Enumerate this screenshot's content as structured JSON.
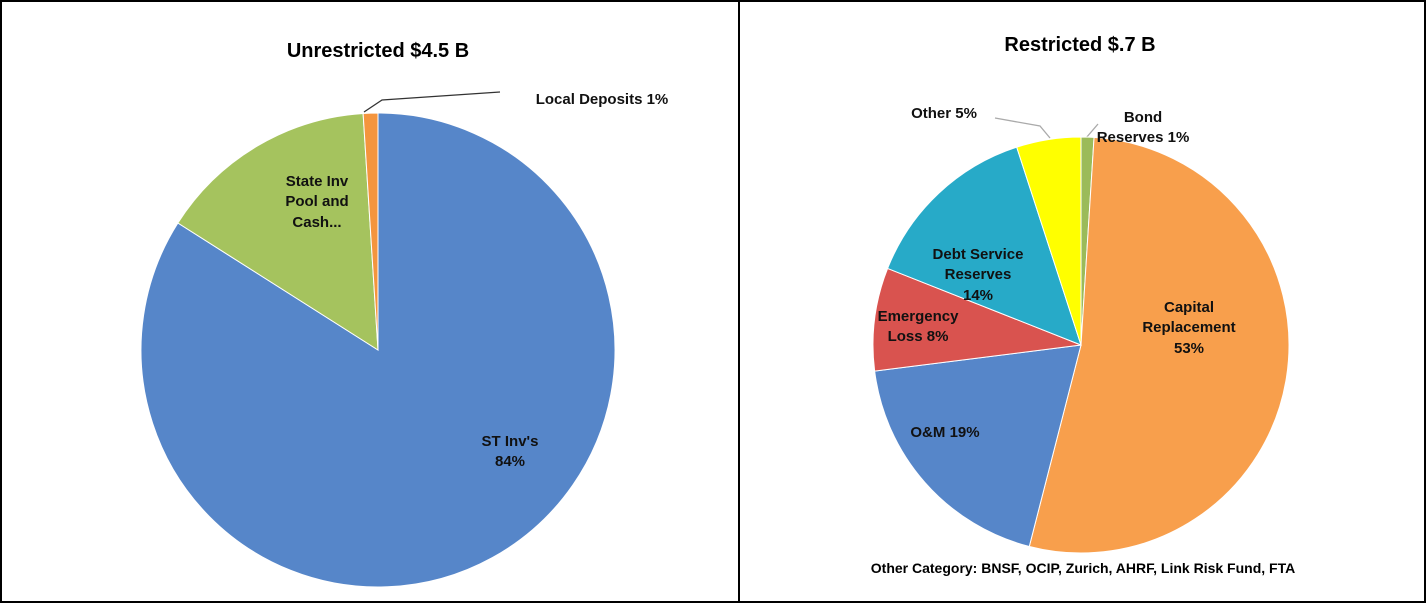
{
  "chart_data": [
    {
      "type": "pie",
      "title": "Unrestricted $4.5 B",
      "categories": [
        "ST Inv's",
        "State Inv Pool and Cash...",
        "Local Deposits"
      ],
      "values": [
        84,
        15,
        1
      ],
      "value_labels": [
        "84%",
        null,
        "1%"
      ],
      "colors": [
        "#5686c9",
        "#a5c35e",
        "#f4953e"
      ]
    },
    {
      "type": "pie",
      "title": "Restricted $.7 B",
      "categories": [
        "Bond Reserves",
        "Capital Replacement",
        "O&M",
        "Emergency Loss",
        "Debt Service Reserves",
        "Other"
      ],
      "values": [
        1,
        53,
        19,
        8,
        14,
        5
      ],
      "value_labels": [
        "1%",
        "53%",
        "19%",
        "8%",
        "14%",
        "5%"
      ],
      "colors": [
        "#9bbb59",
        "#f89f4c",
        "#5686c9",
        "#d9534f",
        "#27aac8",
        "#ffff00"
      ],
      "annotation": "Other Category: BNSF, OCIP, Zurich, AHRF, Link Risk Fund, FTA"
    }
  ]
}
